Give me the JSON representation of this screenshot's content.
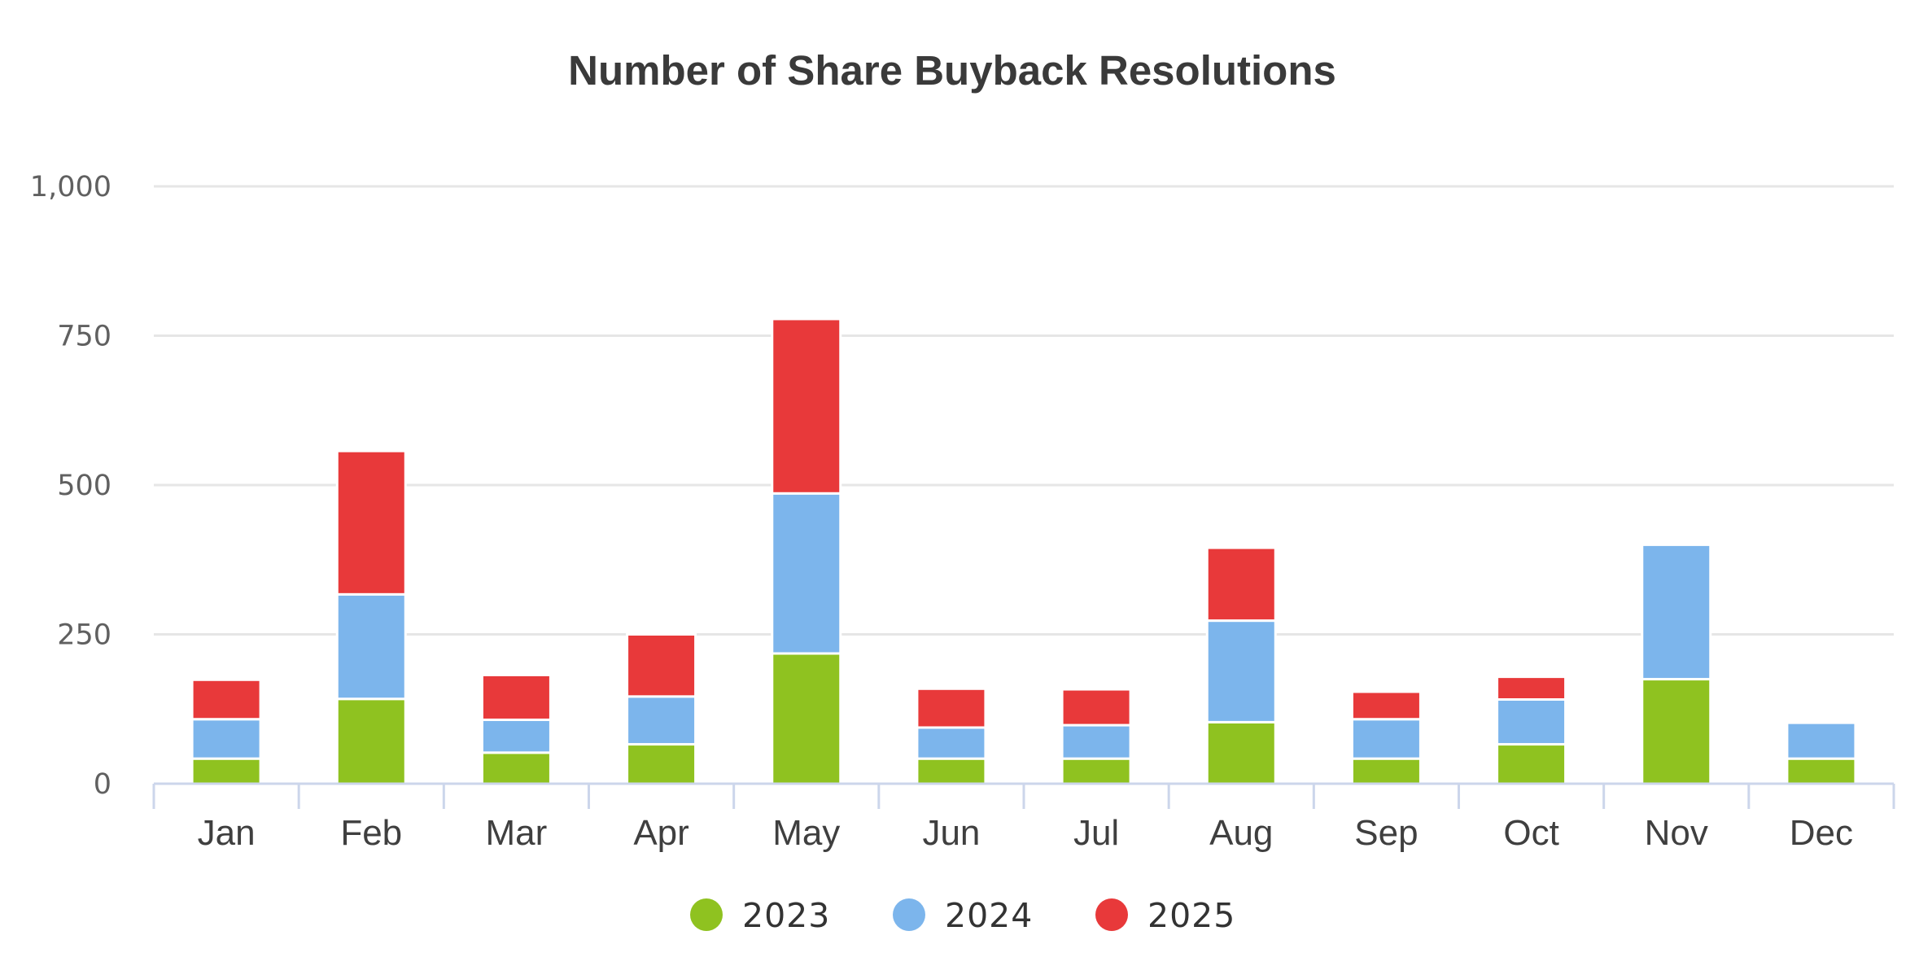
{
  "chart_data": {
    "type": "bar",
    "stacked": true,
    "title": "Number of Share Buyback Resolutions",
    "categories": [
      "Jan",
      "Feb",
      "Mar",
      "Apr",
      "May",
      "Jun",
      "Jul",
      "Aug",
      "Sep",
      "Oct",
      "Nov",
      "Dec"
    ],
    "series": [
      {
        "name": "2023",
        "color": "#8fc220",
        "values": [
          42,
          142,
          52,
          66,
          218,
          42,
          42,
          103,
          42,
          66,
          175,
          42
        ]
      },
      {
        "name": "2024",
        "color": "#7cb5ec",
        "values": [
          66,
          175,
          55,
          80,
          268,
          52,
          56,
          170,
          66,
          75,
          225,
          60
        ]
      },
      {
        "name": "2025",
        "color": "#e8393a",
        "values": [
          66,
          240,
          75,
          104,
          292,
          65,
          60,
          122,
          46,
          38,
          0,
          0
        ]
      }
    ],
    "ylim": [
      0,
      1000
    ],
    "yticks": [
      0,
      250,
      500,
      750,
      1000
    ],
    "ytick_labels": [
      "0",
      "250",
      "500",
      "750",
      "1,000"
    ],
    "grid": true,
    "legend_position": "bottom-center",
    "xlabel": "",
    "ylabel": ""
  }
}
